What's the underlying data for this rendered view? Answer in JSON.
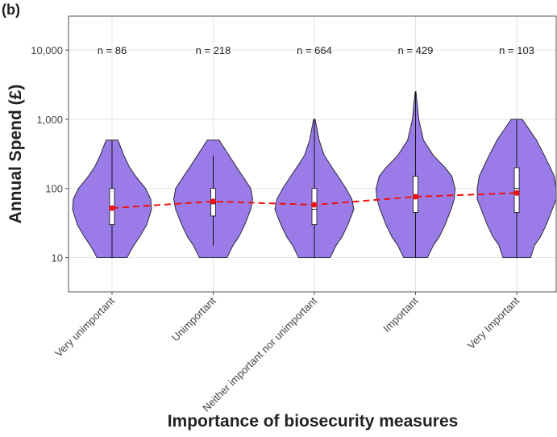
{
  "chart_data": {
    "type": "violin",
    "panel_label": "(b)",
    "y_label": "Annual Spend (£)",
    "x_label": "Importance of biosecurity measures",
    "log_y": true,
    "grid": true,
    "ylim": [
      3.2,
      31000
    ],
    "yticks": [
      {
        "value": 10000,
        "label": "10,000"
      },
      {
        "value": 1000,
        "label": "1,000"
      },
      100,
      10
    ],
    "categories": [
      "Very unimportant",
      "Unimportant",
      "Neither important nor unimportant",
      "Important",
      "Very Important"
    ],
    "n_labels": [
      "n = 86",
      "n = 218",
      "n = 664",
      "n = 429",
      "n = 103"
    ],
    "violin_color": "#9b7be8",
    "mean_color": "#ee1111",
    "means": [
      52,
      65,
      58,
      76,
      86
    ],
    "boxes": [
      {
        "whisker_low": 10,
        "q1": 30,
        "median": 55,
        "q3": 100,
        "whisker_high": 500
      },
      {
        "whisker_low": 15,
        "q1": 40,
        "median": 60,
        "q3": 100,
        "whisker_high": 300
      },
      {
        "whisker_low": 10,
        "q1": 30,
        "median": 50,
        "q3": 100,
        "whisker_high": 1000
      },
      {
        "whisker_low": 10,
        "q1": 45,
        "median": 75,
        "q3": 150,
        "whisker_high": 2500
      },
      {
        "whisker_low": 10,
        "q1": 45,
        "median": 100,
        "q3": 200,
        "whisker_high": 1000
      }
    ],
    "violins": [
      {
        "y": [
          10,
          15,
          20,
          30,
          50,
          70,
          100,
          150,
          200,
          300,
          500
        ],
        "width": [
          0.38,
          0.55,
          0.7,
          0.88,
          1.0,
          0.98,
          0.85,
          0.6,
          0.45,
          0.3,
          0.15
        ]
      },
      {
        "y": [
          10,
          15,
          20,
          30,
          50,
          70,
          100,
          150,
          200,
          300,
          500
        ],
        "width": [
          0.35,
          0.5,
          0.65,
          0.8,
          0.95,
          1.0,
          0.95,
          0.75,
          0.6,
          0.4,
          0.15
        ]
      },
      {
        "y": [
          10,
          15,
          20,
          30,
          50,
          70,
          100,
          150,
          200,
          300,
          500,
          1000
        ],
        "width": [
          0.4,
          0.55,
          0.7,
          0.85,
          1.0,
          0.95,
          0.8,
          0.6,
          0.45,
          0.25,
          0.12,
          0.02
        ]
      },
      {
        "y": [
          10,
          15,
          20,
          30,
          50,
          70,
          100,
          150,
          200,
          300,
          500,
          1000,
          2500
        ],
        "width": [
          0.3,
          0.45,
          0.6,
          0.75,
          0.9,
          0.98,
          1.0,
          0.92,
          0.75,
          0.45,
          0.2,
          0.08,
          0.01
        ]
      },
      {
        "y": [
          10,
          15,
          20,
          30,
          50,
          70,
          100,
          150,
          200,
          300,
          500,
          1000
        ],
        "width": [
          0.35,
          0.45,
          0.6,
          0.75,
          0.9,
          1.0,
          1.0,
          0.95,
          0.85,
          0.7,
          0.5,
          0.14
        ]
      }
    ]
  }
}
